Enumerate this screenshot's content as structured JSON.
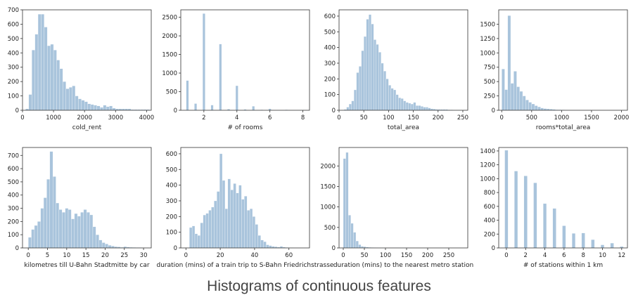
{
  "caption": "Histograms of continuous features",
  "colors": {
    "bar": "#a9c4dc",
    "axis": "#333333",
    "text": "#222222"
  },
  "chart_data": [
    {
      "type": "bar",
      "subtype": "histogram",
      "xlabel": "cold_rent",
      "ylabel": "",
      "xlim": [
        0,
        4150
      ],
      "ylim": [
        0,
        700
      ],
      "xticks": [
        0,
        1000,
        2000,
        3000,
        4000
      ],
      "yticks": [
        0,
        100,
        200,
        300,
        400,
        500,
        600,
        700
      ],
      "bin_start": 100,
      "bin_width": 100,
      "values": [
        10,
        110,
        420,
        530,
        670,
        670,
        580,
        450,
        460,
        420,
        350,
        290,
        200,
        150,
        160,
        170,
        100,
        80,
        70,
        60,
        45,
        40,
        35,
        30,
        20,
        35,
        25,
        30,
        15,
        10,
        10,
        10,
        10,
        10,
        5,
        5,
        5,
        5,
        5,
        5
      ]
    },
    {
      "type": "bar",
      "subtype": "histogram",
      "xlabel": "# of rooms",
      "ylabel": "",
      "xlim": [
        0.6,
        8.4
      ],
      "ylim": [
        0,
        2700
      ],
      "xticks": [
        2,
        4,
        6,
        8
      ],
      "yticks": [
        0,
        500,
        1000,
        1500,
        2000,
        2500
      ],
      "bin_width": 0.15,
      "bars": [
        [
          1,
          800
        ],
        [
          1.5,
          180
        ],
        [
          2,
          2600
        ],
        [
          2.5,
          140
        ],
        [
          3,
          1780
        ],
        [
          3.5,
          30
        ],
        [
          4,
          660
        ],
        [
          4.5,
          25
        ],
        [
          5,
          110
        ],
        [
          5.5,
          15
        ],
        [
          6,
          40
        ],
        [
          7,
          15
        ],
        [
          8,
          10
        ]
      ]
    },
    {
      "type": "bar",
      "subtype": "histogram",
      "xlabel": "total_area",
      "ylabel": "",
      "xlim": [
        0,
        260
      ],
      "ylim": [
        0,
        640
      ],
      "xticks": [
        0,
        50,
        100,
        150,
        200,
        250
      ],
      "yticks": [
        0,
        100,
        200,
        300,
        400,
        500,
        600
      ],
      "bin_start": 10,
      "bin_width": 5,
      "values": [
        5,
        20,
        40,
        60,
        130,
        240,
        280,
        380,
        470,
        580,
        610,
        550,
        450,
        420,
        370,
        300,
        250,
        200,
        160,
        140,
        130,
        100,
        80,
        75,
        60,
        50,
        45,
        40,
        50,
        30,
        30,
        25,
        20,
        20,
        15,
        10,
        8,
        6,
        5,
        5,
        5,
        5,
        3,
        3,
        2,
        2,
        2,
        2,
        1,
        1
      ]
    },
    {
      "type": "bar",
      "subtype": "histogram",
      "xlabel": "rooms*total_area",
      "ylabel": "",
      "xlim": [
        -50,
        2100
      ],
      "ylim": [
        0,
        1750
      ],
      "xticks": [
        0,
        500,
        1000,
        1500,
        2000
      ],
      "yticks": [
        0,
        250,
        500,
        750,
        1000,
        1250,
        1500
      ],
      "bin_start": 0,
      "bin_width": 50,
      "values": [
        720,
        360,
        1650,
        470,
        680,
        410,
        330,
        250,
        180,
        140,
        110,
        80,
        60,
        40,
        30,
        25,
        20,
        15,
        10,
        10,
        8,
        6,
        5,
        4,
        3,
        3,
        2,
        2,
        2,
        1,
        1,
        1,
        1,
        1,
        1,
        1,
        1,
        1,
        1,
        1
      ]
    },
    {
      "type": "bar",
      "subtype": "histogram",
      "xlabel": "kilometres till U-Bahn Stadtmitte by car",
      "ylabel": "",
      "xlim": [
        -1.5,
        32
      ],
      "ylim": [
        0,
        760
      ],
      "xticks": [
        0,
        5,
        10,
        15,
        20,
        25,
        30
      ],
      "yticks": [
        0,
        100,
        200,
        300,
        400,
        500,
        600,
        700
      ],
      "bin_start": 0,
      "bin_width": 0.8,
      "values": [
        80,
        140,
        170,
        200,
        300,
        380,
        520,
        730,
        540,
        340,
        290,
        270,
        300,
        290,
        220,
        260,
        240,
        270,
        290,
        270,
        250,
        160,
        100,
        60,
        40,
        30,
        20,
        15,
        10,
        8,
        5,
        10,
        6,
        5,
        4,
        3,
        3,
        2
      ]
    },
    {
      "type": "bar",
      "subtype": "histogram",
      "xlabel": "duration (mins) of a train trip to S-Bahn Friedrichstrasse",
      "ylabel": "",
      "xlim": [
        -3,
        72
      ],
      "ylim": [
        0,
        640
      ],
      "xticks": [
        0,
        20,
        40,
        60
      ],
      "yticks": [
        0,
        100,
        200,
        300,
        400,
        500,
        600
      ],
      "bin_start": 2,
      "bin_width": 1.6,
      "values": [
        130,
        140,
        90,
        80,
        160,
        210,
        220,
        240,
        260,
        300,
        360,
        600,
        430,
        250,
        440,
        370,
        410,
        350,
        400,
        310,
        330,
        240,
        250,
        200,
        150,
        80,
        50,
        40,
        20,
        15,
        10,
        8,
        5,
        10,
        5,
        3,
        2,
        2,
        1,
        1
      ]
    },
    {
      "type": "bar",
      "subtype": "histogram",
      "xlabel": "duration (mins) to the nearest metro station",
      "ylabel": "",
      "xlim": [
        -10,
        295
      ],
      "ylim": [
        0,
        2450
      ],
      "xticks": [
        0,
        50,
        100,
        150,
        200,
        250
      ],
      "yticks": [
        0,
        500,
        1000,
        1500,
        2000
      ],
      "bin_start": 0,
      "bin_width": 6,
      "values": [
        2180,
        2330,
        800,
        600,
        380,
        170,
        80,
        40,
        30,
        20,
        15,
        10,
        8,
        6,
        5,
        4,
        3,
        3,
        2,
        2,
        1,
        1,
        1,
        1,
        1,
        1
      ]
    },
    {
      "type": "bar",
      "subtype": "histogram",
      "xlabel": "# of stations within 1 km",
      "ylabel": "",
      "xlim": [
        -0.8,
        12.6
      ],
      "ylim": [
        0,
        1450
      ],
      "xticks": [
        0,
        2,
        4,
        6,
        8,
        10,
        12
      ],
      "yticks": [
        0,
        200,
        400,
        600,
        800,
        1000,
        1200,
        1400
      ],
      "bin_width": 0.35,
      "bars": [
        [
          0,
          1410
        ],
        [
          1,
          1110
        ],
        [
          2,
          1040
        ],
        [
          3,
          940
        ],
        [
          4,
          640
        ],
        [
          5,
          570
        ],
        [
          6,
          320
        ],
        [
          7,
          210
        ],
        [
          8,
          215
        ],
        [
          9,
          120
        ],
        [
          10,
          45
        ],
        [
          11,
          70
        ],
        [
          12,
          20
        ]
      ]
    }
  ]
}
